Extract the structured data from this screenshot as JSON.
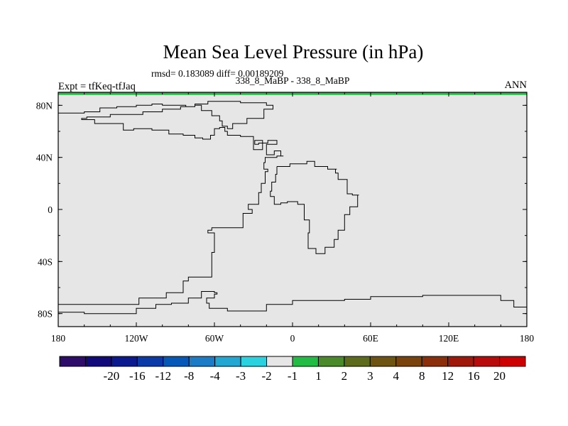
{
  "chart_data": {
    "type": "map-contour",
    "title": "Mean Sea Level Pressure (in hPa)",
    "stats": "rmsd= 0.183089 diff= 0.00189209",
    "left_label": "Expt = tfKeq-tfJaq",
    "center_label": "338_8_MaBP - 338_8_MaBP",
    "right_label": "ANN",
    "field_fill_color": "#e6e6e6",
    "grid_lines": false,
    "xlim": [
      -180,
      180
    ],
    "ylim": [
      -90,
      90
    ],
    "x_ticks": [
      {
        "value": -180,
        "label": "180"
      },
      {
        "value": -120,
        "label": "120W"
      },
      {
        "value": -60,
        "label": "60W"
      },
      {
        "value": 0,
        "label": "0"
      },
      {
        "value": 60,
        "label": "60E"
      },
      {
        "value": 120,
        "label": "120E"
      },
      {
        "value": 180,
        "label": "180"
      }
    ],
    "y_ticks": [
      {
        "value": 80,
        "label": "80N"
      },
      {
        "value": 40,
        "label": "40N"
      },
      {
        "value": 0,
        "label": "0"
      },
      {
        "value": -40,
        "label": "40S"
      },
      {
        "value": -80,
        "label": "80S"
      }
    ],
    "high_lat_band": {
      "from": 88,
      "to": 90,
      "color": "#22bb44"
    },
    "coastlines": [
      {
        "name": "americas-antarctica",
        "points": [
          [
            -180,
            -73
          ],
          [
            -140,
            -73
          ],
          [
            -118,
            -68
          ],
          [
            -97,
            -64
          ],
          [
            -84,
            -55
          ],
          [
            -80,
            -52
          ],
          [
            -62,
            -40
          ],
          [
            -62,
            -33
          ],
          [
            -60,
            -31
          ],
          [
            -60,
            -18
          ],
          [
            -65,
            -16
          ],
          [
            -62,
            -14
          ],
          [
            -47,
            -14
          ],
          [
            -38,
            -7
          ],
          [
            -38,
            -3
          ],
          [
            -31,
            0
          ],
          [
            -34,
            4
          ],
          [
            -26,
            13
          ],
          [
            -24,
            20
          ],
          [
            -21,
            24
          ],
          [
            -21,
            29
          ],
          [
            -19,
            31
          ],
          [
            -22,
            36
          ],
          [
            -21,
            40
          ],
          [
            -12,
            41
          ],
          [
            -7,
            41
          ],
          [
            -9,
            45
          ],
          [
            -14,
            42
          ],
          [
            -20,
            50
          ],
          [
            -12,
            53
          ],
          [
            -19,
            51
          ],
          [
            -26,
            50
          ],
          [
            -29,
            53
          ],
          [
            -27,
            53
          ],
          [
            -23,
            46
          ],
          [
            -30,
            56
          ],
          [
            -40,
            57
          ],
          [
            -50,
            58
          ],
          [
            -50,
            60
          ],
          [
            -52,
            63
          ],
          [
            -56,
            62
          ],
          [
            -60,
            57
          ],
          [
            -63,
            54
          ],
          [
            -66,
            54
          ],
          [
            -69,
            55
          ],
          [
            -75,
            57
          ],
          [
            -84,
            58
          ],
          [
            -95,
            61
          ],
          [
            -108,
            62
          ],
          [
            -122,
            61
          ],
          [
            -130,
            66
          ],
          [
            -152,
            69
          ],
          [
            -160,
            69
          ],
          [
            -162,
            70
          ],
          [
            -158,
            71
          ],
          [
            -140,
            73
          ],
          [
            -115,
            75
          ],
          [
            -100,
            77
          ],
          [
            -86,
            79
          ],
          [
            -75,
            81
          ],
          [
            -65,
            83
          ],
          [
            -48,
            83
          ],
          [
            -40,
            82
          ],
          [
            -20,
            80
          ],
          [
            -15,
            77
          ],
          [
            -22,
            70
          ],
          [
            -35,
            66
          ],
          [
            -46,
            62
          ],
          [
            -50,
            64
          ],
          [
            -54,
            68
          ],
          [
            -56,
            72
          ],
          [
            -62,
            76
          ],
          [
            -70,
            80
          ],
          [
            -75,
            79
          ],
          [
            -82,
            80
          ],
          [
            -88,
            80
          ],
          [
            -100,
            81
          ],
          [
            -108,
            80
          ],
          [
            -120,
            79
          ],
          [
            -135,
            78
          ],
          [
            -148,
            75
          ],
          [
            -160,
            74
          ],
          [
            -170,
            74
          ],
          [
            -180,
            73
          ]
        ]
      },
      {
        "name": "africa-eurasia",
        "points": [
          [
            -12,
            33
          ],
          [
            -2,
            35
          ],
          [
            11,
            37
          ],
          [
            17,
            33
          ],
          [
            27,
            31
          ],
          [
            34,
            31
          ],
          [
            33,
            28
          ],
          [
            35,
            23
          ],
          [
            42,
            12
          ],
          [
            46,
            11
          ],
          [
            51,
            11
          ],
          [
            50,
            2
          ],
          [
            44,
            -4
          ],
          [
            40,
            -16
          ],
          [
            35,
            -23
          ],
          [
            32,
            -29
          ],
          [
            25,
            -34
          ],
          [
            19,
            -34
          ],
          [
            18,
            -30
          ],
          [
            12,
            -18
          ],
          [
            13,
            -8
          ],
          [
            9,
            -1
          ],
          [
            9,
            4
          ],
          [
            4,
            6
          ],
          [
            -4,
            5
          ],
          [
            -9,
            4
          ],
          [
            -14,
            10
          ],
          [
            -17,
            14
          ],
          [
            -16,
            21
          ],
          [
            -13,
            27
          ],
          [
            -12,
            33
          ]
        ]
      },
      {
        "name": "antarctica-east",
        "points": [
          [
            -180,
            -79
          ],
          [
            -160,
            -80
          ],
          [
            -120,
            -76
          ],
          [
            -105,
            -73
          ],
          [
            -93,
            -72
          ],
          [
            -80,
            -68
          ],
          [
            -70,
            -63
          ],
          [
            -60,
            -64
          ],
          [
            -58,
            -65
          ],
          [
            -60,
            -68
          ],
          [
            -66,
            -72
          ],
          [
            -64,
            -76
          ],
          [
            -50,
            -78
          ],
          [
            -35,
            -78
          ],
          [
            -20,
            -73
          ],
          [
            0,
            -70
          ],
          [
            20,
            -70
          ],
          [
            40,
            -69
          ],
          [
            60,
            -67
          ],
          [
            80,
            -67
          ],
          [
            100,
            -66
          ],
          [
            120,
            -66
          ],
          [
            140,
            -66
          ],
          [
            160,
            -70
          ],
          [
            170,
            -75
          ],
          [
            180,
            -78
          ]
        ]
      }
    ],
    "colorbar": {
      "colors": [
        "#2d0c6a",
        "#120a7a",
        "#0c1a8f",
        "#0a3aa8",
        "#0557b8",
        "#1a7cc6",
        "#22a6d2",
        "#2ad2e0",
        "#e6e6e6",
        "#22bb44",
        "#4a8a2a",
        "#5d6b1d",
        "#6d5412",
        "#7a420c",
        "#8a2f0a",
        "#a0180a",
        "#b80a0a",
        "#cc0000"
      ],
      "labels": [
        "-20",
        "-16",
        "-12",
        "-8",
        "-4",
        "-3",
        "-2",
        "-1",
        "1",
        "2",
        "3",
        "4",
        "8",
        "12",
        "16",
        "20"
      ]
    }
  }
}
